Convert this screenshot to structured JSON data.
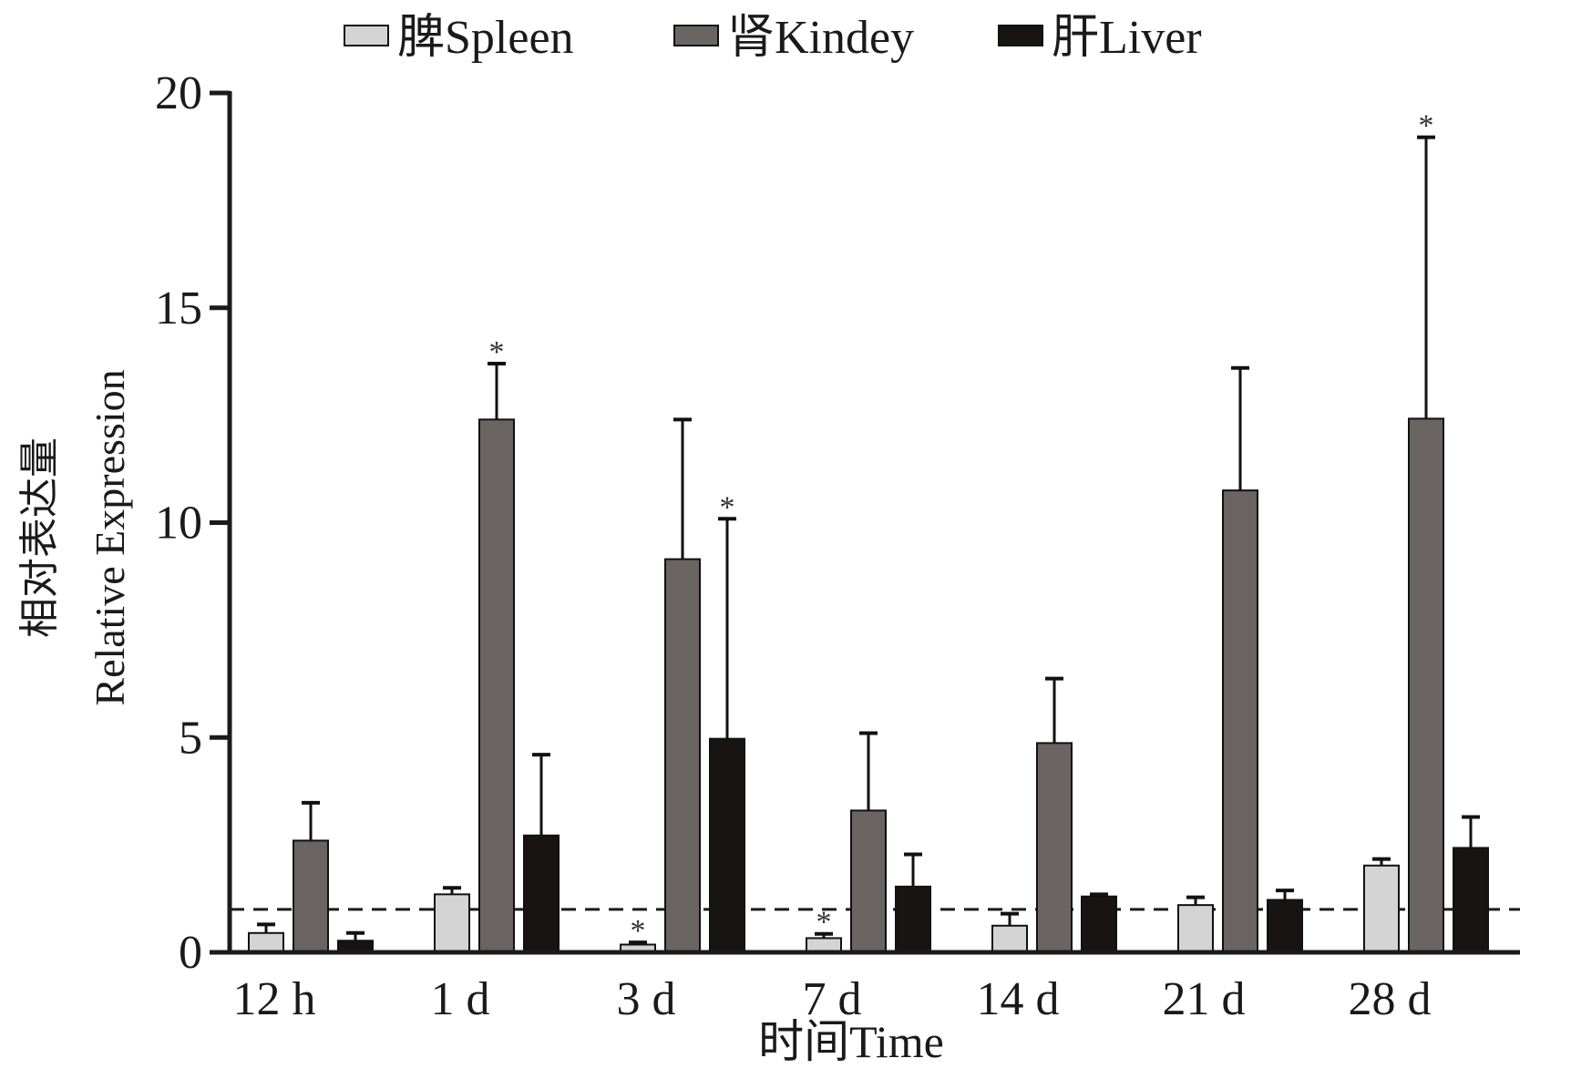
{
  "colors": {
    "spleen": "#d4d4d4",
    "kidney": "#6a6463",
    "liver": "#181414",
    "axis": "#1a1a1a",
    "background": "#ffffff"
  },
  "chart_data": {
    "type": "bar",
    "title": "",
    "xlabel": "时间Time",
    "ylabel_cn": "相对表达量",
    "ylabel_en": "Relative Expression",
    "ylim": [
      0,
      20
    ],
    "yticks": [
      "0",
      "5",
      "10",
      "15",
      "20"
    ],
    "ytick_values": [
      0,
      5,
      10,
      15,
      20
    ],
    "categories": [
      "12 h",
      "1 d",
      "3 d",
      "7 d",
      "14 d",
      "21 d",
      "28 d"
    ],
    "reference_line": 1,
    "significance_marker": "*",
    "legend": [
      "脾Spleen",
      "肾Kindey",
      "肝Liver"
    ],
    "legend_position": "top-center",
    "series": [
      {
        "name": "脾Spleen",
        "color_key": "spleen",
        "values": [
          0.45,
          1.35,
          0.18,
          0.33,
          0.62,
          1.1,
          2.02
        ],
        "errors": [
          0.2,
          0.15,
          0.05,
          0.1,
          0.28,
          0.18,
          0.15
        ],
        "significant": [
          false,
          false,
          true,
          true,
          false,
          false,
          false
        ]
      },
      {
        "name": "肾Kindey",
        "color_key": "kidney",
        "values": [
          2.6,
          12.4,
          9.15,
          3.3,
          4.87,
          10.75,
          12.42
        ],
        "errors": [
          0.88,
          1.3,
          3.25,
          1.8,
          1.5,
          2.85,
          6.55
        ],
        "significant": [
          false,
          true,
          false,
          false,
          false,
          false,
          true
        ]
      },
      {
        "name": "肝Liver",
        "color_key": "liver",
        "values": [
          0.27,
          2.72,
          4.97,
          1.53,
          1.3,
          1.22,
          2.43
        ],
        "errors": [
          0.18,
          1.88,
          5.12,
          0.75,
          0.05,
          0.22,
          0.72
        ],
        "significant": [
          false,
          false,
          true,
          false,
          false,
          false,
          false
        ]
      }
    ]
  }
}
